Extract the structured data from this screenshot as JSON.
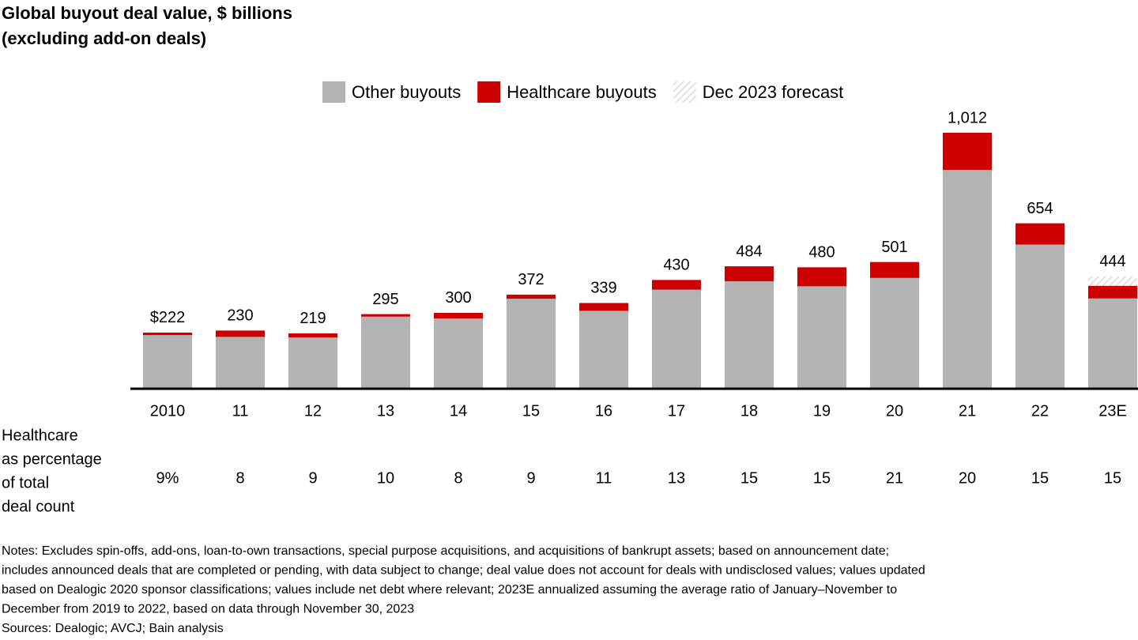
{
  "chart_data": {
    "type": "stacked-bar",
    "title": [
      "Global buyout deal value, $ billions",
      "(excluding add-on deals)"
    ],
    "categories": [
      "2010",
      "11",
      "12",
      "13",
      "14",
      "15",
      "16",
      "17",
      "18",
      "19",
      "20",
      "21",
      "22",
      "23E"
    ],
    "series": [
      {
        "name": "Other buyouts",
        "color": "#b3b3b3",
        "values": [
          212,
          205,
          203,
          285,
          278,
          356,
          308,
          392,
          425,
          405,
          438,
          865,
          570,
          357
        ]
      },
      {
        "name": "Healthcare buyouts",
        "color": "#cc0000",
        "values": [
          10,
          25,
          16,
          10,
          22,
          16,
          31,
          38,
          59,
          75,
          63,
          147,
          84,
          50
        ]
      },
      {
        "name": "Dec 2023 forecast",
        "color": "#cccccc",
        "pattern": "hatch",
        "values": [
          null,
          null,
          null,
          null,
          null,
          null,
          null,
          null,
          null,
          null,
          null,
          null,
          null,
          37
        ]
      }
    ],
    "totals": {
      "values": [
        222,
        230,
        219,
        295,
        300,
        372,
        339,
        430,
        484,
        480,
        501,
        1012,
        654,
        444
      ],
      "value_labels": [
        "$222",
        "230",
        "219",
        "295",
        "300",
        "372",
        "339",
        "430",
        "484",
        "480",
        "501",
        "1,012",
        "654",
        "444"
      ]
    },
    "healthcare_share": {
      "label": [
        "Healthcare",
        "as percentage",
        "of total",
        "deal count"
      ],
      "values": [
        9,
        8,
        9,
        10,
        8,
        9,
        11,
        13,
        15,
        15,
        21,
        20,
        15,
        15
      ],
      "value_labels": [
        "9%",
        "8",
        "9",
        "10",
        "8",
        "9",
        "11",
        "13",
        "15",
        "15",
        "21",
        "20",
        "15",
        "15"
      ]
    },
    "notes": [
      "Notes: Excludes spin-offs, add-ons, loan-to-own transactions, special purpose acquisitions, and acquisitions of bankrupt assets; based on announcement date;",
      "includes announced deals that are completed or pending, with data subject to change; deal value does not account for deals with undisclosed values; values updated",
      "based on Dealogic 2020 sponsor classifications; values include net debt where relevant; 2023E annualized assuming the average ratio of January–November to",
      "December from 2019 to 2022, based on data through November 30, 2023",
      "Sources: Dealogic; AVCJ; Bain analysis"
    ]
  }
}
